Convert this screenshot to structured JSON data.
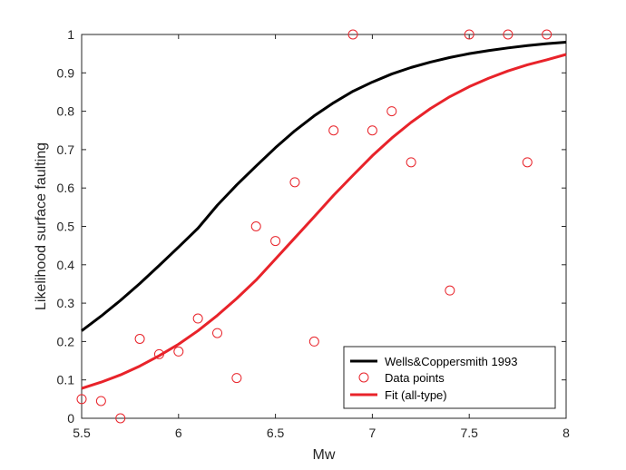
{
  "chart_data": {
    "type": "scatter",
    "xlabel": "Mw",
    "ylabel": "Likelihood surface faulting",
    "xlim": [
      5.5,
      8
    ],
    "ylim": [
      0,
      1
    ],
    "xticks": [
      "5.5",
      "6",
      "6.5",
      "7",
      "7.5",
      "8"
    ],
    "yticks": [
      "0",
      "0.1",
      "0.2",
      "0.3",
      "0.4",
      "0.5",
      "0.6",
      "0.7",
      "0.8",
      "0.9",
      "1"
    ],
    "grid": false,
    "legend_position": "bottom-right",
    "series": [
      {
        "name": "Wells&Coppersmith 1993",
        "kind": "line",
        "color": "#000000",
        "x": [
          5.5,
          5.6,
          5.7,
          5.8,
          5.9,
          6.0,
          6.1,
          6.2,
          6.3,
          6.4,
          6.5,
          6.6,
          6.7,
          6.8,
          6.9,
          7.0,
          7.1,
          7.2,
          7.3,
          7.4,
          7.5,
          7.6,
          7.7,
          7.8,
          7.9,
          8.0
        ],
        "y": [
          0.228,
          0.266,
          0.307,
          0.351,
          0.398,
          0.446,
          0.495,
          0.555,
          0.608,
          0.657,
          0.705,
          0.749,
          0.788,
          0.822,
          0.852,
          0.876,
          0.897,
          0.914,
          0.928,
          0.94,
          0.95,
          0.958,
          0.965,
          0.971,
          0.976,
          0.98
        ]
      },
      {
        "name": "Data points",
        "kind": "scatter",
        "color": "#e8232a",
        "x": [
          5.5,
          5.6,
          5.7,
          5.8,
          5.9,
          6.0,
          6.1,
          6.2,
          6.3,
          6.4,
          6.5,
          6.6,
          6.7,
          6.8,
          6.9,
          7.0,
          7.1,
          7.2,
          7.4,
          7.5,
          7.7,
          7.8,
          7.9
        ],
        "y": [
          0.05,
          0.045,
          0.0,
          0.207,
          0.167,
          0.174,
          0.26,
          0.222,
          0.105,
          0.5,
          0.462,
          0.615,
          0.2,
          0.75,
          1.0,
          0.75,
          0.8,
          0.667,
          0.333,
          1.0,
          1.0,
          0.667,
          1.0
        ]
      },
      {
        "name": "Fit (all-type)",
        "kind": "line",
        "color": "#e8232a",
        "x": [
          5.5,
          5.6,
          5.7,
          5.8,
          5.9,
          6.0,
          6.1,
          6.2,
          6.3,
          6.4,
          6.5,
          6.6,
          6.7,
          6.8,
          6.9,
          7.0,
          7.1,
          7.2,
          7.3,
          7.4,
          7.5,
          7.6,
          7.7,
          7.8,
          7.9,
          8.0
        ],
        "y": [
          0.078,
          0.094,
          0.113,
          0.136,
          0.163,
          0.193,
          0.228,
          0.268,
          0.312,
          0.36,
          0.415,
          0.47,
          0.525,
          0.581,
          0.633,
          0.684,
          0.73,
          0.771,
          0.807,
          0.838,
          0.864,
          0.886,
          0.905,
          0.921,
          0.934,
          0.948
        ]
      }
    ]
  }
}
